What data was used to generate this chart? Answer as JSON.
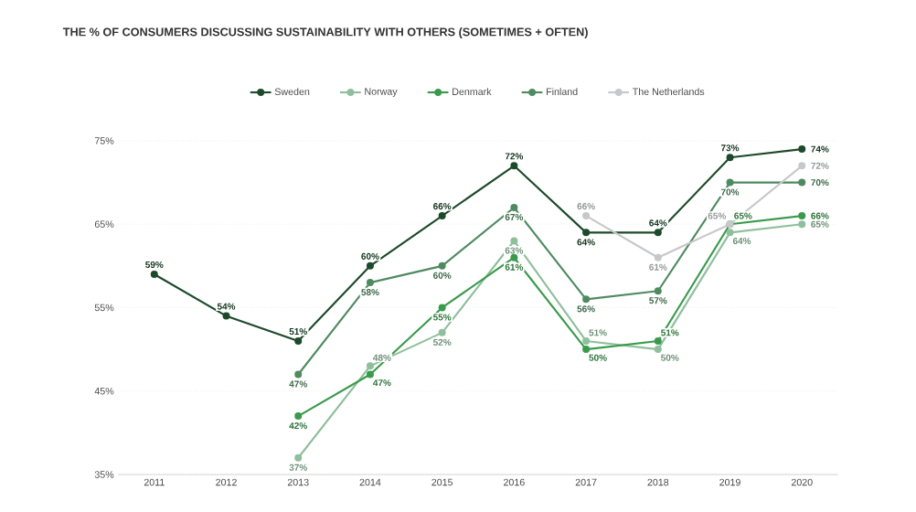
{
  "chart_data": {
    "type": "line",
    "title": "THE % OF CONSUMERS DISCUSSING SUSTAINABILITY WITH OTHERS (SOMETIMES + OFTEN)",
    "categories": [
      "2011",
      "2012",
      "2013",
      "2014",
      "2015",
      "2016",
      "2017",
      "2018",
      "2019",
      "2020"
    ],
    "series": [
      {
        "name": "Sweden",
        "color": "#1d4a2a",
        "values": [
          59,
          54,
          51,
          60,
          66,
          72,
          64,
          64,
          73,
          74
        ],
        "value_labels": [
          "59%",
          "54%",
          "51%",
          "60%",
          "66%",
          "72%",
          "64%",
          "64%",
          "73%",
          "74%"
        ]
      },
      {
        "name": "Norway",
        "color": "#8fbf9c",
        "values": [
          null,
          null,
          37,
          48,
          52,
          63,
          51,
          50,
          64,
          65
        ],
        "value_labels": [
          null,
          null,
          "37%",
          "48%",
          "52%",
          "63%",
          "51%",
          "50%",
          "64%",
          "65%"
        ]
      },
      {
        "name": "Denmark",
        "color": "#3a9a4c",
        "values": [
          null,
          null,
          42,
          47,
          55,
          61,
          50,
          51,
          65,
          66
        ],
        "value_labels": [
          null,
          null,
          "42%",
          "47%",
          "55%",
          "61%",
          "50%",
          "51%",
          "65%",
          "66%"
        ]
      },
      {
        "name": "Finland",
        "color": "#4f8a60",
        "values": [
          null,
          null,
          47,
          58,
          60,
          67,
          56,
          57,
          70,
          70
        ],
        "value_labels": [
          null,
          null,
          "47%",
          "58%",
          "60%",
          "67%",
          "56%",
          "57%",
          "70%",
          "70%"
        ]
      },
      {
        "name": "The Netherlands",
        "color": "#c6c8ca",
        "values": [
          null,
          null,
          null,
          null,
          null,
          null,
          66,
          61,
          65,
          72
        ],
        "value_labels": [
          null,
          null,
          null,
          null,
          null,
          null,
          "66%",
          "61%",
          "65%",
          "72%"
        ]
      }
    ],
    "ylim": [
      35,
      75
    ],
    "yticks": [
      {
        "value": 35,
        "label": "35%"
      },
      {
        "value": 45,
        "label": "45%"
      },
      {
        "value": 55,
        "label": "55%"
      },
      {
        "value": 65,
        "label": "65%"
      },
      {
        "value": 75,
        "label": "75%"
      }
    ],
    "grid": "y",
    "legend": "top",
    "marker": "circle"
  }
}
